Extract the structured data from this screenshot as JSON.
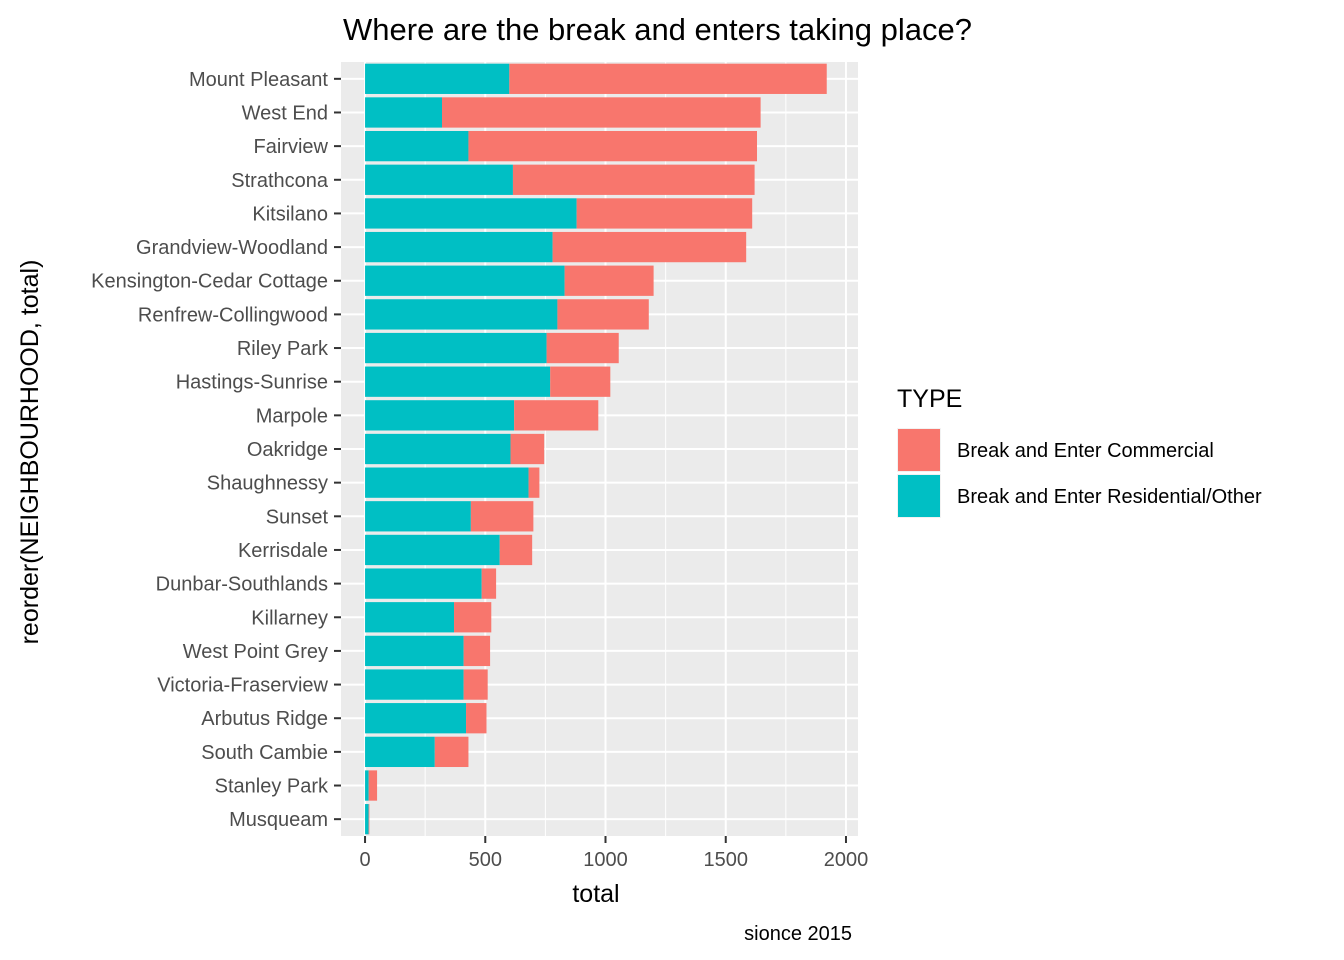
{
  "chart_data": {
    "type": "bar",
    "orientation": "horizontal",
    "stacked": true,
    "title": "Where are the break and enters taking place?",
    "xlabel": "total",
    "ylabel": "reorder(NEIGHBOURHOOD, total)",
    "caption": "sionce 2015",
    "xlim": [
      0,
      2000
    ],
    "x_ticks": [
      0,
      500,
      1000,
      1500,
      2000
    ],
    "grid": true,
    "legend_position": "right",
    "legend_title": "TYPE",
    "categories": [
      "Mount Pleasant",
      "West End",
      "Fairview",
      "Strathcona",
      "Kitsilano",
      "Grandview-Woodland",
      "Kensington-Cedar Cottage",
      "Renfrew-Collingwood",
      "Riley Park",
      "Hastings-Sunrise",
      "Marpole",
      "Oakridge",
      "Shaughnessy",
      "Sunset",
      "Kerrisdale",
      "Dunbar-Southlands",
      "Killarney",
      "West Point Grey",
      "Victoria-Fraserview",
      "Arbutus Ridge",
      "South Cambie",
      "Stanley Park",
      "Musqueam"
    ],
    "series": [
      {
        "name": "Break and Enter Residential/Other",
        "color": "#00BFC4",
        "values": [
          600,
          320,
          430,
          615,
          880,
          780,
          830,
          800,
          755,
          770,
          620,
          605,
          680,
          440,
          560,
          485,
          370,
          410,
          410,
          420,
          290,
          15,
          15
        ]
      },
      {
        "name": "Break and Enter Commercial",
        "color": "#F8766D",
        "values": [
          1320,
          1325,
          1200,
          1005,
          730,
          805,
          370,
          380,
          300,
          250,
          350,
          140,
          45,
          260,
          135,
          60,
          155,
          110,
          100,
          85,
          140,
          35,
          3
        ]
      }
    ],
    "legend_order": [
      "Break and Enter Commercial",
      "Break and Enter Residential/Other"
    ]
  }
}
